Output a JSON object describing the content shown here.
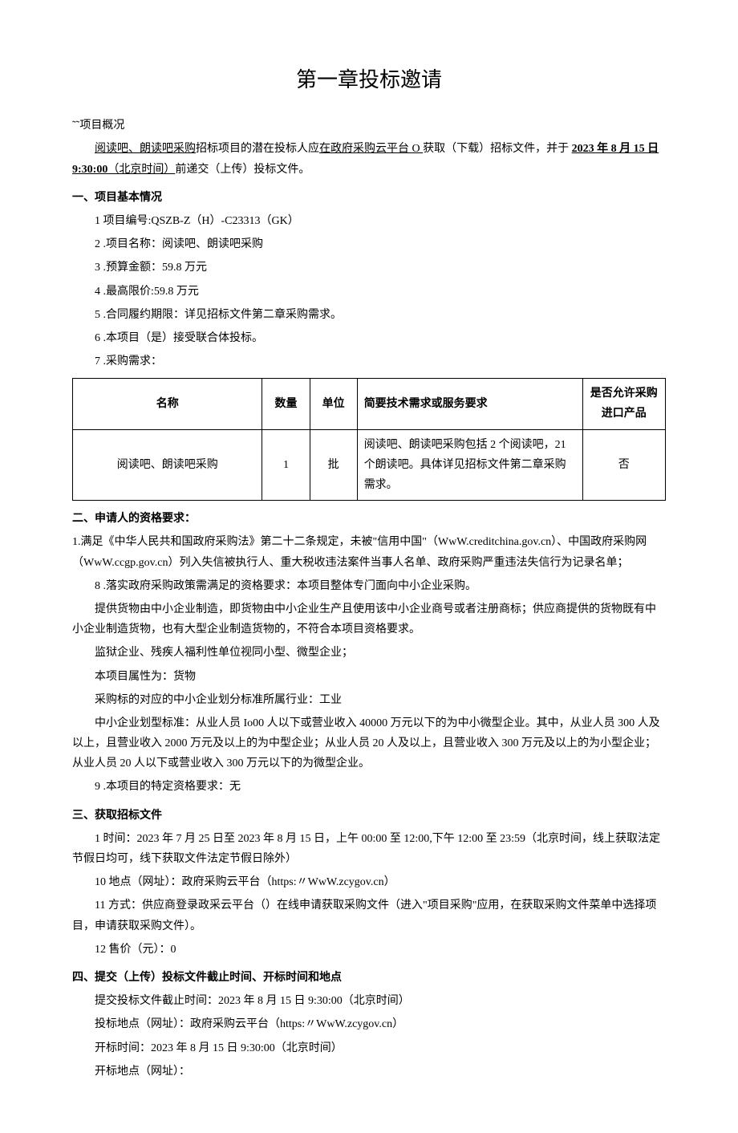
{
  "title": "第一章投标邀请",
  "overview": {
    "label": "˜˜项目概况",
    "pre": "阅读吧、朗读吧采购",
    "mid": "招标项目的潜在投标人应",
    "link": "在政府采购云平台 O ",
    "post1": "获取（下载）招标文件，并于 ",
    "date": "2023 年 8 月 15 日 9:30:00",
    "post2": "（北京时间）",
    "post3": "前递交（上传）投标文件。"
  },
  "s1": {
    "header": "一、项目基本情况",
    "items": [
      "1 项目编号:QSZB-Z（H）-C23313（GK）",
      "2   .项目名称：阅读吧、朗读吧采购",
      "3   .预算金额：59.8 万元",
      "4   .最高限价:59.8 万元",
      "5   .合同履约期限：详见招标文件第二章采购需求。",
      "6   .本项目（是）接受联合体投标。",
      "7   .采购需求："
    ]
  },
  "table": {
    "headers": [
      "名称",
      "数量",
      "单位",
      "简要技术需求或服务要求",
      "是否允许采购进口产品"
    ],
    "row": [
      "阅读吧、朗读吧采购",
      "1",
      "批",
      "阅读吧、朗读吧采购包括 2 个阅读吧，21 个朗读吧。具体详见招标文件第二章采购需求。",
      "否"
    ]
  },
  "s2": {
    "header": "二、申请人的资格要求：",
    "p1": "1.满足《中华人民共和国政府采购法》第二十二条规定，未被\"信用中国\"（WwW.creditchina.gov.cn）、中国政府采购网（WwW.ccgp.gov.cn）列入失信被执行人、重大税收违法案件当事人名单、政府采购严重违法失信行为记录名单；",
    "p2": "8   .落实政府采购政策需满足的资格要求：本项目整体专门面向中小企业采购。",
    "p3": "提供货物由中小企业制造，即货物由中小企业生产且使用该中小企业商号或者注册商标；供应商提供的货物既有中小企业制造货物，也有大型企业制造货物的，不符合本项目资格要求。",
    "p4": "监狱企业、残疾人福利性单位视同小型、微型企业；",
    "p5": "本项目属性为：货物",
    "p6": "采购标的对应的中小企业划分标准所属行业：工业",
    "p7": "中小企业划型标准：从业人员 Io00 人以下或营业收入 40000 万元以下的为中小微型企业。其中，从业人员 300 人及以上，且营业收入 2000 万元及以上的为中型企业；从业人员 20 人及以上，且营业收入 300 万元及以上的为小型企业；从业人员 20 人以下或营业收入 300 万元以下的为微型企业。",
    "p8": "9   .本项目的特定资格要求：无"
  },
  "s3": {
    "header": "三、获取招标文件",
    "p1": "1 时间：2023 年 7 月 25 日至 2023 年 8 月 15 日，上午 00:00 至 12:00,下午 12:00 至 23:59（北京时间，线上获取法定节假日均可，线下获取文件法定节假日除外）",
    "p2": "10  地点（网址）：政府采购云平台（https:〃WwW.zcygov.cn）",
    "p3": "11  方式：供应商登录政采云平台（）在线申请获取采购文件（进入\"项目采购\"应用，在获取采购文件菜单中选择项目，申请获取采购文件）。",
    "p4": "12  售价（元）：0"
  },
  "s4": {
    "header": "四、提交（上传）投标文件截止时间、开标时间和地点",
    "p1": "提交投标文件截止时间：2023 年 8 月 15 日 9:30:00（北京时间）",
    "p2": "投标地点（网址）：政府采购云平台（https:〃WwW.zcygov.cn）",
    "p3": "开标时间：2023 年 8 月 15 日 9:30:00（北京时间）",
    "p4": "开标地点（网址）："
  }
}
